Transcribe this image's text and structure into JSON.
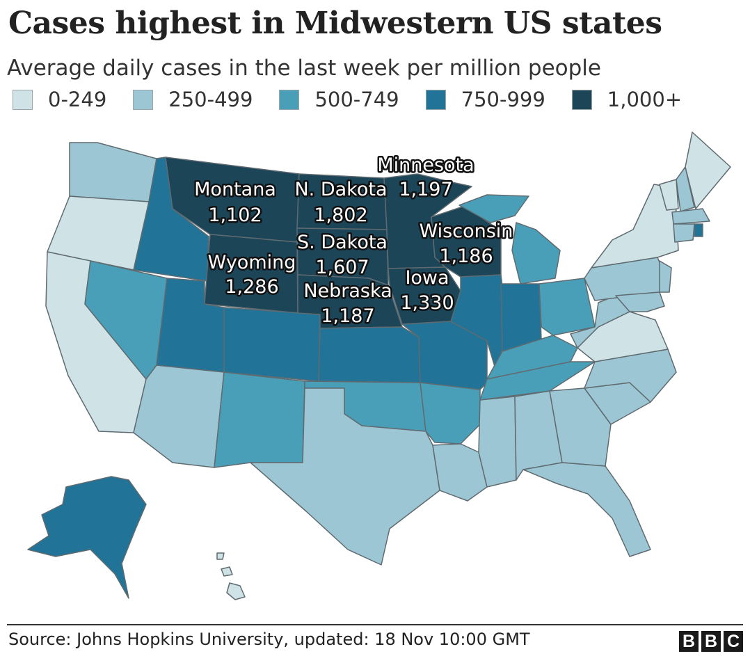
{
  "title": "Cases highest in Midwestern US states",
  "subtitle": "Average daily cases in the last week per million people",
  "legend": [
    {
      "label": "0-249",
      "color": "#cfe2e6"
    },
    {
      "label": "250-499",
      "color": "#9cc6d4"
    },
    {
      "label": "500-749",
      "color": "#4a9fb8"
    },
    {
      "label": "750-999",
      "color": "#217498"
    },
    {
      "label": "1,000+",
      "color": "#1c4558"
    }
  ],
  "labeled_states": [
    {
      "name": "Montana",
      "value": "1,102"
    },
    {
      "name": "N. Dakota",
      "value": "1,802"
    },
    {
      "name": "Minnesota",
      "value": "1,197"
    },
    {
      "name": "S. Dakota",
      "value": "1,607"
    },
    {
      "name": "Wyoming",
      "value": "1,286"
    },
    {
      "name": "Wisconsin",
      "value": "1,186"
    },
    {
      "name": "Nebraska",
      "value": "1,187"
    },
    {
      "name": "Iowa",
      "value": "1,330"
    }
  ],
  "footer": {
    "source": "Source: Johns Hopkins University, updated: 18 Nov 10:00 GMT",
    "logo": [
      "B",
      "B",
      "C"
    ]
  }
}
